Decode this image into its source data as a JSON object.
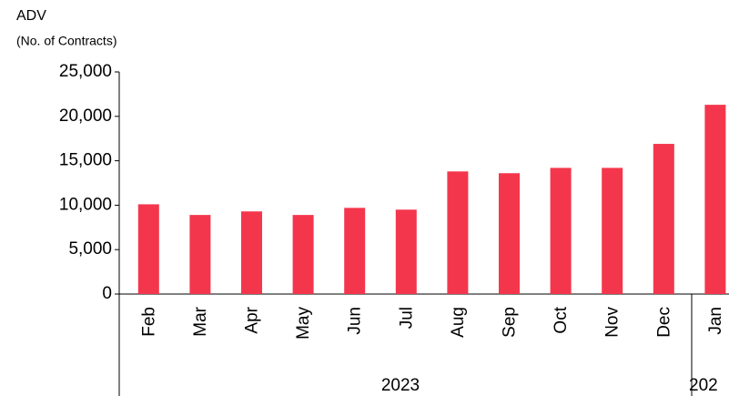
{
  "chart_data": {
    "type": "bar",
    "title": "ADV",
    "subtitle": "(No. of Contracts)",
    "categories": [
      "Feb",
      "Mar",
      "Apr",
      "May",
      "Jun",
      "Jul",
      "Aug",
      "Sep",
      "Oct",
      "Nov",
      "Dec",
      "Jan"
    ],
    "values": [
      10100,
      8900,
      9300,
      8900,
      9700,
      9500,
      13800,
      13600,
      14200,
      14200,
      16900,
      21300
    ],
    "x_groups": [
      "2023",
      "202"
    ],
    "color": "#f4364c",
    "ylim": [
      0,
      25000
    ],
    "yticks": [
      0,
      {
        "value": 5000,
        "label": "5,000"
      },
      {
        "value": 10000,
        "label": "10,000"
      },
      {
        "value": 15000,
        "label": "15,000"
      },
      {
        "value": 20000,
        "label": "20,000"
      },
      {
        "value": 25000,
        "label": "25,000"
      }
    ],
    "grid": false
  }
}
